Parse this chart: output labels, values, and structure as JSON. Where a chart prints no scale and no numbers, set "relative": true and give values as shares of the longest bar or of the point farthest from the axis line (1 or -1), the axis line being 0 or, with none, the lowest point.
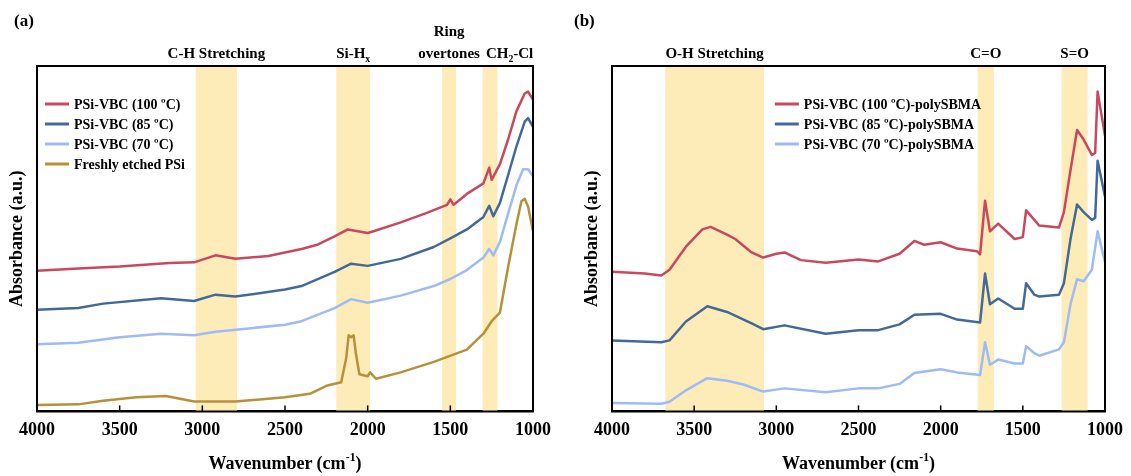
{
  "chart_data": [
    {
      "type": "line",
      "title": "(a)",
      "xlabel": "Wavenumber (cm$^{-1}$)",
      "ylabel": "Absorbance (a.u.)",
      "relative": true,
      "xlim": [
        4000,
        1000
      ],
      "xticks": [
        4000,
        3500,
        3000,
        2500,
        2000,
        1500,
        1000
      ],
      "tick_labels": "x",
      "legend": "top left",
      "bands": [
        {
          "axis": "x",
          "from": 3040,
          "to": 2790,
          "label": "C-H Stretching",
          "color": "#fdebb8"
        },
        {
          "axis": "x",
          "from": 2190,
          "to": 1985,
          "label": "Si-H$_{x}$",
          "color": "#fdebb8"
        },
        {
          "axis": "x",
          "from": 1550,
          "to": 1465,
          "label": "Ring overtones",
          "color": "#fdebb8"
        },
        {
          "axis": "x",
          "from": 1305,
          "to": 1215,
          "label": "CH$_{2}$-Cl",
          "color": "#fdebb8"
        }
      ],
      "series": [
        {
          "name": "PSi-VBC (100 ºC)",
          "color": "#c9485e",
          "x": [
            4000,
            3750,
            3500,
            3200,
            3050,
            2920,
            2800,
            2600,
            2400,
            2300,
            2200,
            2120,
            2000,
            1960,
            1800,
            1650,
            1520,
            1500,
            1480,
            1400,
            1300,
            1265,
            1250,
            1200,
            1150,
            1100,
            1050,
            1030,
            1000
          ],
          "values": [
            0.44,
            0.447,
            0.453,
            0.464,
            0.466,
            0.488,
            0.477,
            0.486,
            0.508,
            0.522,
            0.547,
            0.569,
            0.558,
            0.564,
            0.591,
            0.619,
            0.646,
            0.663,
            0.646,
            0.68,
            0.713,
            0.762,
            0.724,
            0.773,
            0.851,
            0.939,
            0.994,
            1.0,
            0.975
          ]
        },
        {
          "name": "PSi-VBC (85 ºC)",
          "color": "#42699a",
          "x": [
            4000,
            3750,
            3600,
            3250,
            3050,
            2920,
            2800,
            2500,
            2400,
            2200,
            2100,
            2000,
            1800,
            1600,
            1500,
            1400,
            1300,
            1265,
            1240,
            1200,
            1150,
            1100,
            1050,
            1030,
            1000
          ],
          "values": [
            0.318,
            0.323,
            0.337,
            0.354,
            0.345,
            0.365,
            0.359,
            0.381,
            0.392,
            0.436,
            0.462,
            0.455,
            0.477,
            0.514,
            0.541,
            0.569,
            0.608,
            0.643,
            0.61,
            0.652,
            0.74,
            0.829,
            0.906,
            0.917,
            0.89
          ]
        },
        {
          "name": "PSi-VBC (70 ºC)",
          "color": "#9dbbf5",
          "x": [
            4000,
            3750,
            3500,
            3250,
            3050,
            2920,
            2500,
            2400,
            2200,
            2100,
            2000,
            1800,
            1600,
            1500,
            1400,
            1300,
            1265,
            1240,
            1200,
            1150,
            1100,
            1060,
            1030,
            1000
          ],
          "values": [
            0.21,
            0.215,
            0.232,
            0.243,
            0.238,
            0.249,
            0.271,
            0.282,
            0.323,
            0.351,
            0.34,
            0.362,
            0.392,
            0.414,
            0.442,
            0.481,
            0.508,
            0.488,
            0.53,
            0.619,
            0.707,
            0.757,
            0.757,
            0.735
          ]
        },
        {
          "name": "Freshly etched PSi",
          "color": "#b5913a",
          "x": [
            4000,
            3750,
            3600,
            3400,
            3220,
            3050,
            2800,
            2500,
            2350,
            2250,
            2160,
            2130,
            2115,
            2100,
            2085,
            2070,
            2050,
            2000,
            1985,
            1950,
            1800,
            1600,
            1400,
            1300,
            1250,
            1200,
            1150,
            1100,
            1070,
            1050,
            1030,
            1000
          ],
          "values": [
            0.02,
            0.022,
            0.033,
            0.044,
            0.048,
            0.031,
            0.031,
            0.044,
            0.055,
            0.08,
            0.091,
            0.166,
            0.238,
            0.232,
            0.238,
            0.177,
            0.116,
            0.11,
            0.122,
            0.102,
            0.122,
            0.155,
            0.193,
            0.243,
            0.282,
            0.309,
            0.453,
            0.586,
            0.657,
            0.665,
            0.641,
            0.564
          ]
        }
      ]
    },
    {
      "type": "line",
      "title": "(b)",
      "xlabel": "Wavenumber (cm$^{-1}$)",
      "ylabel": "Absorbance (a.u.)",
      "relative": true,
      "xlim": [
        4000,
        1000
      ],
      "xticks": [
        4000,
        3500,
        3000,
        2500,
        2000,
        1500,
        1000
      ],
      "tick_labels": "x",
      "legend": "top",
      "bands": [
        {
          "axis": "x",
          "from": 3676,
          "to": 3075,
          "label": "O-H Stretching",
          "color": "#fdebb8"
        },
        {
          "axis": "x",
          "from": 1775,
          "to": 1676,
          "label": "C=O",
          "color": "#fdebb8"
        },
        {
          "axis": "x",
          "from": 1264,
          "to": 1106,
          "label": "S=O",
          "color": "#fdebb8"
        }
      ],
      "series": [
        {
          "name": "PSi-VBC (100 ºC)-polySBMA",
          "color": "#c9485e",
          "x": [
            4000,
            3800,
            3700,
            3650,
            3550,
            3450,
            3400,
            3300,
            3250,
            3150,
            3080,
            3000,
            2950,
            2850,
            2700,
            2500,
            2380,
            2250,
            2160,
            2100,
            2000,
            1900,
            1780,
            1760,
            1730,
            1700,
            1650,
            1550,
            1500,
            1480,
            1430,
            1400,
            1280,
            1250,
            1210,
            1170,
            1130,
            1080,
            1060,
            1045,
            1000
          ],
          "values": [
            0.437,
            0.431,
            0.425,
            0.443,
            0.515,
            0.569,
            0.577,
            0.553,
            0.539,
            0.497,
            0.481,
            0.493,
            0.497,
            0.473,
            0.465,
            0.475,
            0.469,
            0.493,
            0.533,
            0.521,
            0.529,
            0.509,
            0.501,
            0.491,
            0.659,
            0.563,
            0.587,
            0.539,
            0.545,
            0.629,
            0.599,
            0.581,
            0.575,
            0.623,
            0.754,
            0.88,
            0.85,
            0.802,
            0.808,
            1.0,
            0.862
          ]
        },
        {
          "name": "PSi-VBC (85 ºC)-polySBMA",
          "color": "#42699a",
          "x": [
            4000,
            3700,
            3650,
            3550,
            3420,
            3300,
            3150,
            3080,
            2950,
            2700,
            2500,
            2380,
            2250,
            2160,
            2000,
            1900,
            1760,
            1730,
            1700,
            1650,
            1550,
            1500,
            1480,
            1430,
            1400,
            1280,
            1250,
            1210,
            1170,
            1130,
            1080,
            1060,
            1045,
            1000
          ],
          "values": [
            0.222,
            0.216,
            0.222,
            0.281,
            0.329,
            0.311,
            0.275,
            0.257,
            0.269,
            0.243,
            0.254,
            0.254,
            0.272,
            0.302,
            0.305,
            0.287,
            0.278,
            0.431,
            0.335,
            0.353,
            0.321,
            0.321,
            0.401,
            0.365,
            0.359,
            0.365,
            0.401,
            0.539,
            0.647,
            0.623,
            0.599,
            0.605,
            0.784,
            0.671
          ]
        },
        {
          "name": "PSi-VBC (70 ºC)-polySBMA",
          "color": "#9dbbf5",
          "x": [
            4000,
            3700,
            3650,
            3550,
            3420,
            3300,
            3200,
            3080,
            2950,
            2700,
            2500,
            2380,
            2250,
            2160,
            2000,
            1900,
            1760,
            1730,
            1700,
            1650,
            1550,
            1500,
            1480,
            1430,
            1400,
            1280,
            1250,
            1210,
            1170,
            1130,
            1080,
            1045,
            1000
          ],
          "values": [
            0.026,
            0.024,
            0.03,
            0.066,
            0.104,
            0.096,
            0.084,
            0.062,
            0.072,
            0.06,
            0.072,
            0.072,
            0.086,
            0.12,
            0.132,
            0.122,
            0.114,
            0.216,
            0.146,
            0.162,
            0.15,
            0.15,
            0.204,
            0.182,
            0.174,
            0.194,
            0.216,
            0.335,
            0.413,
            0.407,
            0.443,
            0.563,
            0.467
          ]
        }
      ]
    }
  ]
}
